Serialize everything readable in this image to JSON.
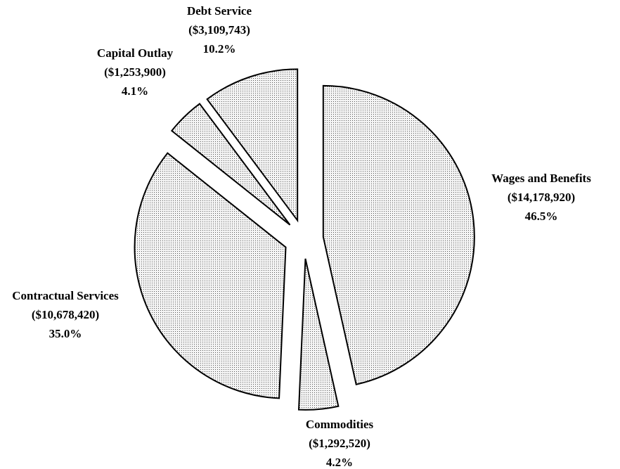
{
  "chart_data": {
    "type": "pie",
    "labels": [
      "Wages and Benefits",
      "Commodities",
      "Contractual Services",
      "Capital Outlay",
      "Debt Service"
    ],
    "amounts": [
      "($14,178,920)",
      "($1,292,520)",
      "($10,678,420)",
      "($1,253,900)",
      "($3,109,743)"
    ],
    "values": [
      46.5,
      4.2,
      35.0,
      4.1,
      10.2
    ],
    "value_labels": [
      "46.5%",
      "4.2%",
      "35.0%",
      "4.1%",
      "10.2%"
    ],
    "color": "#d9d9d9"
  }
}
